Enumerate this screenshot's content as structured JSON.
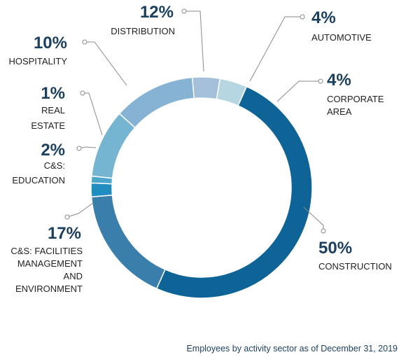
{
  "chart_data": {
    "type": "donut",
    "caption": "Employees by activity sector as of December 31, 2019",
    "unit": "%",
    "slices": [
      {
        "value": 50,
        "percent_label": "50%",
        "label": [
          "CONSTRUCTION"
        ],
        "color": "#0e6496"
      },
      {
        "value": 17,
        "percent_label": "17%",
        "label": [
          "C&S: FACILITIES",
          "MANAGEMENT",
          "AND",
          "ENVIRONMENT"
        ],
        "color": "#3a7fab"
      },
      {
        "value": 2,
        "percent_label": "2%",
        "label": [
          "C&S:",
          "EDUCATION"
        ],
        "color": "#1f8dbf"
      },
      {
        "value": 1,
        "percent_label": "1%",
        "label": [
          "REAL",
          "ESTATE"
        ],
        "color": "#4aa6cb"
      },
      {
        "value": 10,
        "percent_label": "10%",
        "label": [
          "HOSPITALITY"
        ],
        "color": "#76b5d1"
      },
      {
        "value": 12,
        "percent_label": "12%",
        "label": [
          "DISTRIBUTION"
        ],
        "color": "#86b2d4"
      },
      {
        "value": 4,
        "percent_label": "4%",
        "label": [
          "AUTOMOTIVE"
        ],
        "color": "#a3bfd9"
      },
      {
        "value": 4,
        "percent_label": "4%",
        "label": [
          "CORPORATE",
          "AREA"
        ],
        "color": "#b6d6e1"
      }
    ]
  }
}
